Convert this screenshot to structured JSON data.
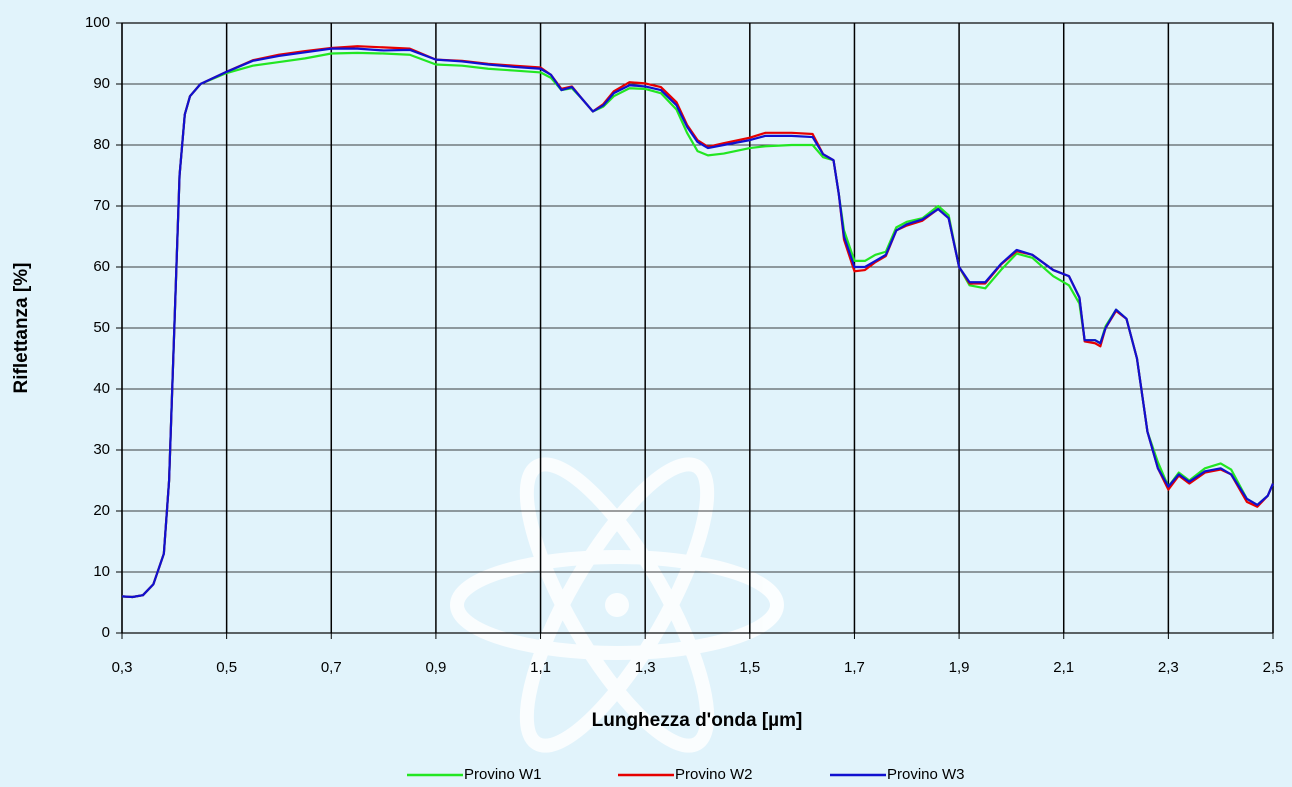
{
  "chart_data": {
    "type": "line",
    "xlabel": "Lunghezza d'onda [µm]",
    "ylabel": "Riflettanza [%]",
    "x": [
      0.3,
      0.32,
      0.34,
      0.36,
      0.38,
      0.39,
      0.4,
      0.41,
      0.42,
      0.43,
      0.45,
      0.5,
      0.55,
      0.6,
      0.65,
      0.7,
      0.75,
      0.8,
      0.85,
      0.9,
      0.95,
      1.0,
      1.05,
      1.1,
      1.12,
      1.14,
      1.16,
      1.18,
      1.2,
      1.22,
      1.24,
      1.27,
      1.3,
      1.33,
      1.36,
      1.38,
      1.4,
      1.42,
      1.45,
      1.5,
      1.53,
      1.58,
      1.62,
      1.64,
      1.66,
      1.67,
      1.68,
      1.7,
      1.72,
      1.74,
      1.76,
      1.78,
      1.8,
      1.83,
      1.86,
      1.88,
      1.9,
      1.92,
      1.95,
      1.98,
      2.01,
      2.04,
      2.08,
      2.11,
      2.13,
      2.14,
      2.16,
      2.17,
      2.18,
      2.2,
      2.22,
      2.24,
      2.26,
      2.28,
      2.3,
      2.32,
      2.34,
      2.37,
      2.4,
      2.42,
      2.45,
      2.47,
      2.49,
      2.5
    ],
    "series": [
      {
        "name": "Provino W1",
        "color": "#22e622",
        "values": [
          6,
          5.9,
          6.2,
          8,
          13,
          25,
          50,
          75,
          85,
          88,
          90,
          91.8,
          93,
          93.6,
          94.2,
          95,
          95.1,
          95,
          94.8,
          93.2,
          93,
          92.5,
          92.2,
          91.9,
          91,
          89,
          89.3,
          87.5,
          85.5,
          86.3,
          88,
          89.3,
          89.2,
          88.5,
          85.8,
          82,
          79,
          78.3,
          78.6,
          79.5,
          79.8,
          80,
          80,
          78,
          77.5,
          72,
          66,
          61,
          61,
          62,
          62.5,
          66.5,
          67.4,
          68,
          70,
          68.5,
          60,
          57,
          56.5,
          59.5,
          62.2,
          61.5,
          58.5,
          57,
          54,
          48,
          48,
          47.5,
          50.3,
          53,
          51.5,
          45,
          33,
          28,
          24,
          26.3,
          25,
          27,
          27.8,
          26.8,
          22,
          21,
          22.5,
          24.5
        ]
      },
      {
        "name": "Provino W2",
        "color": "#e60000",
        "values": [
          6,
          5.9,
          6.2,
          8,
          13,
          25,
          50,
          75,
          85,
          88,
          90,
          92,
          93.9,
          94.8,
          95.4,
          95.9,
          96.2,
          96,
          95.8,
          94,
          93.8,
          93.3,
          93,
          92.7,
          91.5,
          89.2,
          89.6,
          87.5,
          85.5,
          86.7,
          88.8,
          90.3,
          90.1,
          89.5,
          87,
          83.3,
          80.8,
          79.7,
          80.3,
          81.2,
          82,
          82,
          81.8,
          78.5,
          77.5,
          72,
          64.5,
          59.3,
          59.5,
          60.8,
          61.8,
          66,
          66.8,
          67.6,
          69.5,
          68,
          60,
          57.3,
          57.3,
          60.4,
          62.6,
          62,
          59.5,
          58.5,
          55,
          47.8,
          47.5,
          47,
          50,
          52.8,
          51.5,
          45,
          33,
          27,
          23.5,
          25.8,
          24.5,
          26.3,
          26.8,
          26,
          21.5,
          20.7,
          22.5,
          24.5
        ]
      },
      {
        "name": "Provino W3",
        "color": "#1010d0",
        "values": [
          6,
          5.9,
          6.2,
          8,
          13,
          25,
          50,
          75,
          85,
          88,
          90,
          92,
          93.8,
          94.6,
          95.2,
          95.8,
          95.8,
          95.5,
          95.6,
          94,
          93.7,
          93.2,
          92.8,
          92.5,
          91.5,
          89,
          89.5,
          87.5,
          85.5,
          86.5,
          88.5,
          89.8,
          89.6,
          89,
          86.5,
          83,
          80.5,
          79.5,
          80,
          80.8,
          81.5,
          81.5,
          81.3,
          78.5,
          77.5,
          72,
          65,
          60,
          60,
          61,
          62,
          66,
          67,
          67.8,
          69.5,
          68,
          60,
          57.5,
          57.5,
          60.5,
          62.8,
          62,
          59.5,
          58.5,
          55,
          48,
          48,
          47.5,
          50,
          53,
          51.5,
          45,
          33,
          27,
          24,
          26,
          24.8,
          26.5,
          27,
          26,
          22,
          21,
          22.5,
          24.5
        ]
      }
    ],
    "xlim": [
      0.3,
      2.5
    ],
    "xticks": [
      {
        "value": 0.3,
        "label": "0,3"
      },
      {
        "value": 0.5,
        "label": "0,5"
      },
      {
        "value": 0.7,
        "label": "0,7"
      },
      {
        "value": 0.9,
        "label": "0,9"
      },
      {
        "value": 1.1,
        "label": "1,1"
      },
      {
        "value": 1.3,
        "label": "1,3"
      },
      {
        "value": 1.5,
        "label": "1,5"
      },
      {
        "value": 1.7,
        "label": "1,7"
      },
      {
        "value": 1.9,
        "label": "1,9"
      },
      {
        "value": 2.1,
        "label": "2,1"
      },
      {
        "value": 2.3,
        "label": "2,3"
      },
      {
        "value": 2.5,
        "label": "2,5"
      }
    ],
    "ylim": [
      0,
      100
    ],
    "yticks": [
      0,
      10,
      20,
      30,
      40,
      50,
      60,
      70,
      80,
      90,
      100
    ],
    "grid": true,
    "legend": "bottom"
  }
}
